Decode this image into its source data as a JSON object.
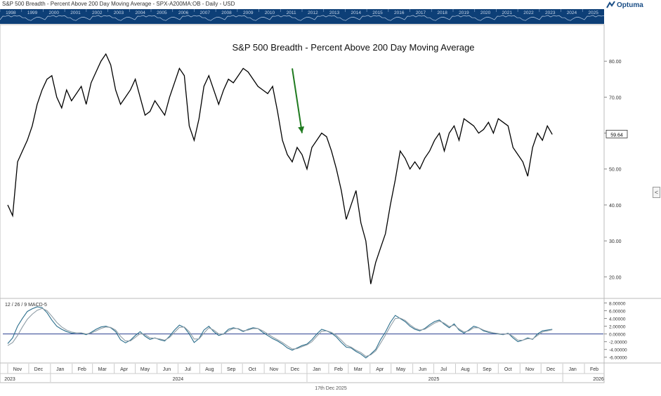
{
  "header": {
    "title": "S&P 500 Breadth - Percent Above 200 Day Moving Average - SPX-A200MA:OB - Daily - USD",
    "brand": "Optuma",
    "right_handle": "<"
  },
  "overview": {
    "years": [
      "1998",
      "1999",
      "2000",
      "2001",
      "2002",
      "2003",
      "2004",
      "2005",
      "2006",
      "2007",
      "2008",
      "2009",
      "2010",
      "2011",
      "2012",
      "2013",
      "2014",
      "2015",
      "2016",
      "2017",
      "2018",
      "2019",
      "2020",
      "2021",
      "2022",
      "2023",
      "2024",
      "2025"
    ]
  },
  "colors": {
    "price_line": "#000000",
    "macd_line": "#2b6e8c",
    "signal_line": "#8f9da6",
    "zero_line": "#2a3f8f",
    "arrow": "#1f7a1f",
    "value_badge_bg": "#ffffff",
    "overview_bg": "#0d3f77"
  },
  "chart_data": [
    {
      "type": "line",
      "title": "S&P 500 Breadth - Percent Above 200 Day Moving Average",
      "ylim": [
        14,
        90
      ],
      "y_ticks": [
        "80.00",
        "70.00",
        "60.00",
        "50.00",
        "40.00",
        "30.00",
        "20.00"
      ],
      "last_value_label": "59.64",
      "x": [
        "2023-11-01",
        "2023-11-08",
        "2023-11-15",
        "2023-11-22",
        "2023-11-29",
        "2023-12-06",
        "2023-12-13",
        "2023-12-20",
        "2023-12-27",
        "2024-01-03",
        "2024-01-10",
        "2024-01-17",
        "2024-01-24",
        "2024-01-31",
        "2024-02-07",
        "2024-02-14",
        "2024-02-21",
        "2024-02-28",
        "2024-03-06",
        "2024-03-13",
        "2024-03-20",
        "2024-03-27",
        "2024-04-03",
        "2024-04-10",
        "2024-04-17",
        "2024-04-24",
        "2024-05-01",
        "2024-05-08",
        "2024-05-15",
        "2024-05-22",
        "2024-05-29",
        "2024-06-05",
        "2024-06-12",
        "2024-06-19",
        "2024-06-26",
        "2024-07-03",
        "2024-07-10",
        "2024-07-17",
        "2024-07-24",
        "2024-07-31",
        "2024-08-07",
        "2024-08-14",
        "2024-08-21",
        "2024-08-28",
        "2024-09-04",
        "2024-09-11",
        "2024-09-18",
        "2024-09-25",
        "2024-10-02",
        "2024-10-09",
        "2024-10-16",
        "2024-10-23",
        "2024-10-30",
        "2024-11-06",
        "2024-11-13",
        "2024-11-20",
        "2024-11-27",
        "2024-12-04",
        "2024-12-11",
        "2024-12-18",
        "2024-12-25",
        "2025-01-01",
        "2025-01-08",
        "2025-01-15",
        "2025-01-22",
        "2025-01-29",
        "2025-02-05",
        "2025-02-12",
        "2025-02-19",
        "2025-02-26",
        "2025-03-05",
        "2025-03-12",
        "2025-03-19",
        "2025-03-26",
        "2025-04-02",
        "2025-04-09",
        "2025-04-16",
        "2025-04-23",
        "2025-04-30",
        "2025-05-07",
        "2025-05-14",
        "2025-05-21",
        "2025-05-28",
        "2025-06-04",
        "2025-06-11",
        "2025-06-18",
        "2025-06-25",
        "2025-07-02",
        "2025-07-09",
        "2025-07-16",
        "2025-07-23",
        "2025-07-30",
        "2025-08-06",
        "2025-08-13",
        "2025-08-20",
        "2025-08-27",
        "2025-09-03",
        "2025-09-10",
        "2025-09-17",
        "2025-09-24",
        "2025-10-01",
        "2025-10-08",
        "2025-10-15",
        "2025-10-22",
        "2025-10-29",
        "2025-11-05",
        "2025-11-12",
        "2025-11-19",
        "2025-11-26",
        "2025-12-03",
        "2025-12-10",
        "2025-12-17"
      ],
      "values": [
        40.0,
        37.0,
        52.0,
        55.0,
        58.0,
        62.0,
        68.0,
        72.0,
        75.0,
        76.0,
        70.0,
        67.0,
        72.0,
        69.0,
        71.0,
        73.0,
        68.0,
        74.0,
        77.0,
        80.0,
        82.0,
        79.0,
        72.0,
        68.0,
        70.0,
        72.0,
        75.0,
        70.0,
        65.0,
        66.0,
        69.0,
        67.0,
        65.0,
        70.0,
        74.0,
        78.0,
        76.0,
        62.0,
        58.0,
        64.0,
        73.0,
        76.0,
        72.0,
        68.0,
        72.0,
        75.0,
        74.0,
        76.0,
        78.0,
        77.0,
        75.0,
        73.0,
        72.0,
        71.0,
        73.0,
        66.0,
        58.0,
        54.0,
        52.0,
        56.0,
        54.0,
        50.0,
        56.0,
        58.0,
        60.0,
        59.0,
        55.0,
        50.0,
        44.0,
        36.0,
        40.0,
        44.0,
        35.0,
        30.0,
        18.0,
        24.0,
        28.0,
        32.0,
        40.0,
        47.0,
        55.0,
        53.0,
        50.0,
        52.0,
        50.0,
        53.0,
        55.0,
        58.0,
        60.0,
        55.0,
        60.0,
        62.0,
        58.0,
        64.0,
        63.0,
        62.0,
        60.0,
        61.0,
        63.0,
        60.0,
        64.0,
        63.0,
        62.0,
        56.0,
        54.0,
        52.0,
        48.0,
        56.0,
        60.0,
        58.0,
        62.0,
        59.64
      ],
      "annotation": {
        "type": "arrow",
        "from": [
          "2024-12-11",
          78
        ],
        "to": [
          "2024-12-25",
          60
        ]
      }
    },
    {
      "type": "line",
      "title": "12 / 26 / 9 MACD-5",
      "ylim": [
        -7.5,
        9.0
      ],
      "y_ticks": [
        "8.00000",
        "6.00000",
        "4.00000",
        "2.00000",
        "0.00000",
        "-2.00000",
        "-4.00000",
        "-6.00000"
      ],
      "series": [
        {
          "name": "MACD",
          "values": [
            -2.5,
            -1.0,
            2.0,
            4.0,
            5.8,
            6.5,
            7.0,
            6.8,
            5.5,
            3.6,
            2.0,
            1.2,
            0.6,
            0.2,
            0.3,
            0.2,
            -0.2,
            0.4,
            1.2,
            1.8,
            2.0,
            1.6,
            0.6,
            -1.5,
            -2.3,
            -1.6,
            -0.4,
            0.6,
            -0.6,
            -1.4,
            -1.0,
            -1.5,
            -1.8,
            -0.6,
            1.0,
            2.3,
            1.7,
            0.0,
            -2.2,
            -1.2,
            1.0,
            2.0,
            0.6,
            -0.4,
            0.0,
            1.2,
            1.6,
            1.3,
            0.6,
            1.2,
            1.6,
            1.4,
            0.4,
            -0.4,
            -1.2,
            -1.8,
            -2.6,
            -3.6,
            -4.2,
            -3.6,
            -3.0,
            -2.6,
            -1.5,
            0.0,
            1.2,
            0.8,
            0.2,
            -0.8,
            -2.2,
            -3.4,
            -3.6,
            -4.5,
            -5.2,
            -6.2,
            -5.2,
            -4.0,
            -1.5,
            0.5,
            3.0,
            4.8,
            4.0,
            3.2,
            2.0,
            1.2,
            0.8,
            1.4,
            2.4,
            3.2,
            3.6,
            2.5,
            1.6,
            2.6,
            1.0,
            0.2,
            1.0,
            2.0,
            1.6,
            0.8,
            0.4,
            0.2,
            0.0,
            -0.2,
            0.2,
            -1.0,
            -2.0,
            -1.6,
            -1.0,
            -1.4,
            0.0,
            0.8,
            1.0,
            1.2
          ]
        },
        {
          "name": "Signal",
          "values": [
            -3.0,
            -2.2,
            -0.4,
            1.8,
            3.8,
            5.1,
            6.1,
            6.6,
            6.0,
            4.6,
            3.0,
            1.8,
            1.0,
            0.5,
            0.3,
            0.3,
            0.0,
            0.2,
            0.8,
            1.4,
            1.8,
            1.7,
            1.0,
            -0.6,
            -1.8,
            -1.8,
            -0.9,
            0.1,
            -0.2,
            -1.0,
            -1.1,
            -1.3,
            -1.6,
            -0.9,
            0.4,
            1.7,
            1.8,
            0.6,
            -1.3,
            -1.3,
            0.2,
            1.6,
            1.0,
            0.0,
            -0.1,
            0.8,
            1.4,
            1.4,
            0.8,
            1.0,
            1.4,
            1.4,
            0.8,
            0.0,
            -0.8,
            -1.5,
            -2.2,
            -3.1,
            -3.9,
            -3.8,
            -3.3,
            -2.8,
            -2.0,
            -0.6,
            0.7,
            0.8,
            0.4,
            -0.4,
            -1.6,
            -2.9,
            -3.4,
            -4.2,
            -4.8,
            -5.8,
            -5.4,
            -4.4,
            -2.4,
            -0.3,
            2.0,
            4.0,
            4.1,
            3.5,
            2.4,
            1.5,
            1.0,
            1.2,
            2.0,
            2.8,
            3.3,
            2.8,
            1.9,
            2.3,
            1.3,
            0.5,
            0.8,
            1.6,
            1.6,
            1.0,
            0.6,
            0.3,
            0.1,
            -0.1,
            0.1,
            -0.6,
            -1.6,
            -1.6,
            -1.2,
            -1.3,
            -0.4,
            0.5,
            0.8,
            1.1
          ]
        }
      ]
    }
  ],
  "x_axis": {
    "months": [
      "Nov",
      "Dec",
      "Jan",
      "Feb",
      "Mar",
      "Apr",
      "May",
      "Jun",
      "Jul",
      "Aug",
      "Sep",
      "Oct",
      "Nov",
      "Dec",
      "Jan",
      "Feb",
      "Mar",
      "Apr",
      "May",
      "Jun",
      "Jul",
      "Aug",
      "Sep",
      "Oct",
      "Nov",
      "Dec",
      "Jan",
      "Feb"
    ],
    "years": [
      "2023",
      "2024",
      "2025",
      "2026"
    ],
    "footer_date": "17th Dec 2025"
  }
}
